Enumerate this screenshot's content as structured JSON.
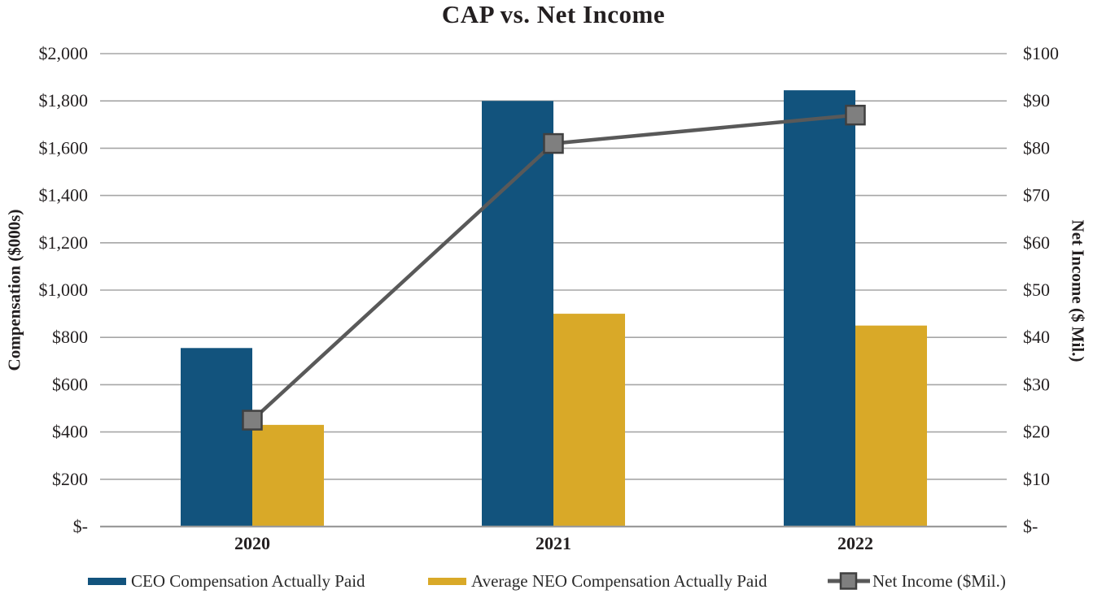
{
  "title": "CAP vs. Net Income",
  "chart_data": {
    "type": "bar",
    "subtype": "grouped-bar-with-line-combo",
    "title": "CAP vs. Net Income",
    "categories": [
      "2020",
      "2021",
      "2022"
    ],
    "series": [
      {
        "name": "CEO Compensation Actually Paid",
        "type": "bar",
        "axis": "left",
        "color": "#12537d",
        "values": [
          755,
          1800,
          1845
        ]
      },
      {
        "name": "Average NEO Compensation Actually Paid",
        "type": "bar",
        "axis": "left",
        "color": "#d9a928",
        "values": [
          430,
          900,
          850
        ]
      },
      {
        "name": "Net Income ($Mil.)",
        "type": "line",
        "axis": "right",
        "color": "#595959",
        "marker": "square",
        "marker_fill": "#7f7f7f",
        "marker_border": "#404040",
        "values": [
          22.5,
          81,
          87
        ]
      }
    ],
    "left_axis": {
      "label": "Compensation ($000s)",
      "min": 0,
      "max": 2000,
      "tick_step": 200,
      "ticks": [
        "$2,000",
        "$1,800",
        "$1,600",
        "$1,400",
        "$1,200",
        "$1,000",
        "$800",
        "$600",
        "$400",
        "$200",
        "$-"
      ]
    },
    "right_axis": {
      "label": "Net Income ($ Mil.)",
      "min": 0,
      "max": 100,
      "tick_step": 10,
      "ticks": [
        "$100",
        "$90",
        "$80",
        "$70",
        "$60",
        "$50",
        "$40",
        "$30",
        "$20",
        "$10",
        "$-"
      ]
    },
    "grid": "horizontal",
    "legend_position": "bottom",
    "legend": [
      "CEO Compensation Actually Paid",
      "Average NEO Compensation Actually Paid",
      "Net Income ($Mil.)"
    ]
  },
  "colors": {
    "ceo_bar": "#12537d",
    "neo_bar": "#d9a928",
    "net_income_line": "#595959",
    "marker_fill": "#7f7f7f",
    "marker_border": "#404040",
    "gridline": "#a6a6a6",
    "axis_line": "#9b9b9b",
    "tick_text": "#231f20",
    "legend_text": "#2b2b2b"
  }
}
